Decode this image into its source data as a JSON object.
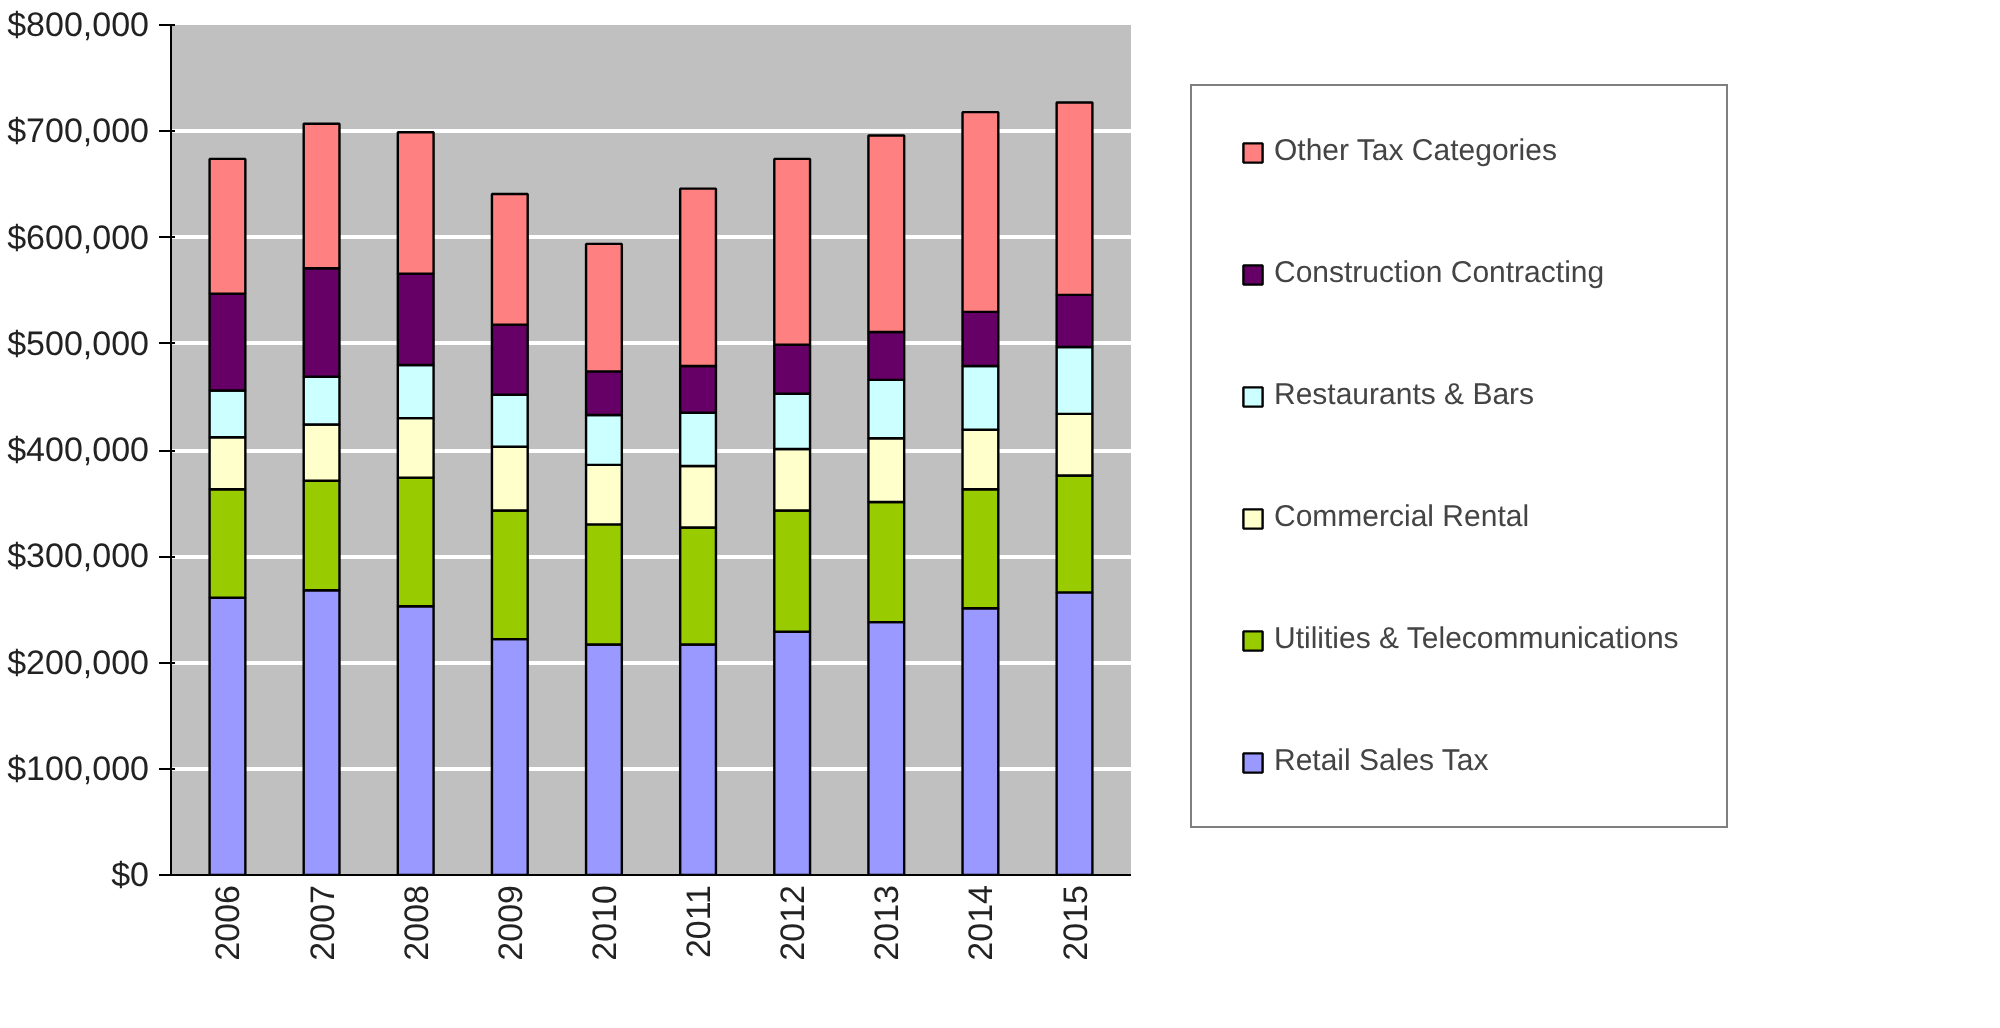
{
  "chart_data": {
    "type": "bar",
    "stacked": true,
    "categories": [
      "2006",
      "2007",
      "2008",
      "2009",
      "2010",
      "2011",
      "2012",
      "2013",
      "2014",
      "2015"
    ],
    "series": [
      {
        "name": "Retail Sales Tax",
        "color": "#9999ff",
        "values": [
          261000,
          268000,
          253000,
          222000,
          217000,
          217000,
          229000,
          238000,
          251000,
          266000
        ]
      },
      {
        "name": "Utilities & Telecommunications",
        "color": "#99cc00",
        "values": [
          102000,
          103000,
          121000,
          121000,
          113000,
          110000,
          114000,
          113000,
          112000,
          110000
        ]
      },
      {
        "name": "Commercial Rental",
        "color": "#ffffcc",
        "values": [
          49000,
          53000,
          56000,
          60000,
          56000,
          58000,
          58000,
          60000,
          56000,
          58000
        ]
      },
      {
        "name": "Restaurants & Bars",
        "color": "#ccffff",
        "values": [
          44000,
          45000,
          50000,
          49000,
          47000,
          50000,
          52000,
          55000,
          60000,
          63000
        ]
      },
      {
        "name": "Construction Contracting",
        "color": "#660066",
        "values": [
          91000,
          102000,
          86000,
          66000,
          41000,
          44000,
          46000,
          45000,
          51000,
          49000
        ]
      },
      {
        "name": "Other Tax Categories",
        "color": "#ff8080",
        "values": [
          127000,
          136000,
          133000,
          123000,
          120000,
          167000,
          175000,
          185000,
          188000,
          181000
        ]
      }
    ],
    "ylim": [
      0,
      800000
    ],
    "yticks": [
      {
        "value": 0,
        "label": "$0"
      },
      {
        "value": 100000,
        "label": "$100,000"
      },
      {
        "value": 200000,
        "label": "$200,000"
      },
      {
        "value": 300000,
        "label": "$300,000"
      },
      {
        "value": 400000,
        "label": "$400,000"
      },
      {
        "value": 500000,
        "label": "$500,000"
      },
      {
        "value": 600000,
        "label": "$600,000"
      },
      {
        "value": 700000,
        "label": "$700,000"
      },
      {
        "value": 800000,
        "label": "$800,000"
      }
    ],
    "grid": "y",
    "legend": "right"
  }
}
